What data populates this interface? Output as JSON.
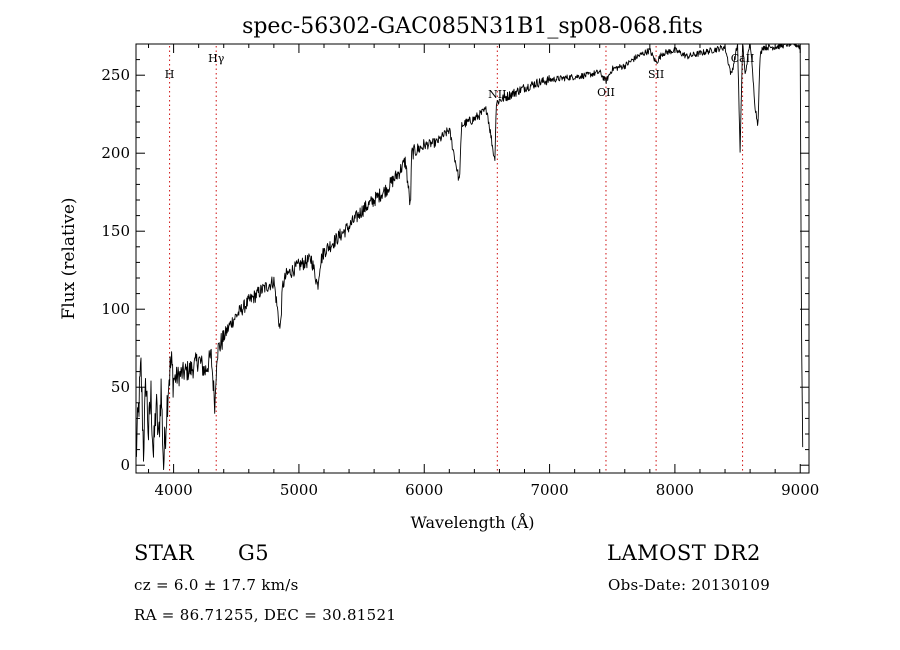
{
  "chart_data": {
    "type": "line",
    "title": "spec-56302-GAC085N31B1_sp08-068.fits",
    "xlabel": "Wavelength (Å)",
    "ylabel": "Flux (relative)",
    "xlim": [
      3700,
      9070
    ],
    "ylim": [
      -5,
      270
    ],
    "xticks": [
      4000,
      5000,
      6000,
      7000,
      8000,
      9000
    ],
    "yticks": [
      0,
      50,
      100,
      150,
      200,
      250
    ],
    "grid": false,
    "line_color": "#000000",
    "marker_color": "#d01010",
    "lines": [
      {
        "label": "H",
        "x": 3968
      },
      {
        "label": "Hγ",
        "x": 4340
      },
      {
        "label": "NII",
        "x": 6583
      },
      {
        "label": "OII",
        "x": 7450
      },
      {
        "label": "SII",
        "x": 7850
      },
      {
        "label": "CaII",
        "x": 8540
      }
    ],
    "spectrum": {
      "x": [
        3700,
        3720,
        3740,
        3760,
        3780,
        3800,
        3820,
        3840,
        3860,
        3880,
        3900,
        3920,
        3940,
        3960,
        3980,
        4000,
        4050,
        4100,
        4150,
        4200,
        4250,
        4300,
        4330,
        4345,
        4360,
        4400,
        4450,
        4500,
        4600,
        4700,
        4800,
        4850,
        4870,
        4900,
        5000,
        5100,
        5150,
        5170,
        5200,
        5300,
        5400,
        5500,
        5600,
        5700,
        5800,
        5850,
        5890,
        5900,
        6000,
        6100,
        6200,
        6280,
        6300,
        6400,
        6500,
        6563,
        6575,
        6600,
        6700,
        6800,
        6900,
        7000,
        7100,
        7200,
        7300,
        7400,
        7450,
        7500,
        7600,
        7700,
        7800,
        7850,
        7900,
        8000,
        8100,
        8200,
        8300,
        8400,
        8450,
        8500,
        8520,
        8540,
        8560,
        8600,
        8640,
        8662,
        8680,
        8700,
        8800,
        8900,
        8960,
        9000,
        9010,
        9020
      ],
      "y": [
        5,
        35,
        62,
        10,
        55,
        20,
        45,
        5,
        40,
        15,
        50,
        0,
        30,
        55,
        65,
        55,
        58,
        60,
        62,
        68,
        60,
        70,
        38,
        72,
        75,
        82,
        90,
        96,
        105,
        112,
        118,
        86,
        115,
        122,
        128,
        132,
        115,
        130,
        137,
        145,
        153,
        163,
        170,
        177,
        188,
        195,
        165,
        200,
        205,
        207,
        215,
        182,
        218,
        222,
        228,
        195,
        232,
        234,
        238,
        242,
        245,
        247,
        248,
        249,
        250,
        252,
        246,
        254,
        256,
        262,
        266,
        258,
        264,
        266,
        262,
        264,
        266,
        268,
        250,
        270,
        200,
        272,
        250,
        272,
        230,
        218,
        262,
        268,
        268,
        270,
        270,
        268,
        90,
        12
      ]
    }
  },
  "info": {
    "class_label": "STAR",
    "subclass_label": "G5",
    "survey_label": "LAMOST DR2",
    "redshift_text": "cz = 6.0 ± 17.7 km/s",
    "obs_date_text": "Obs-Date: 20130109",
    "coords_text": "RA =  86.71255, DEC =  30.81521"
  }
}
